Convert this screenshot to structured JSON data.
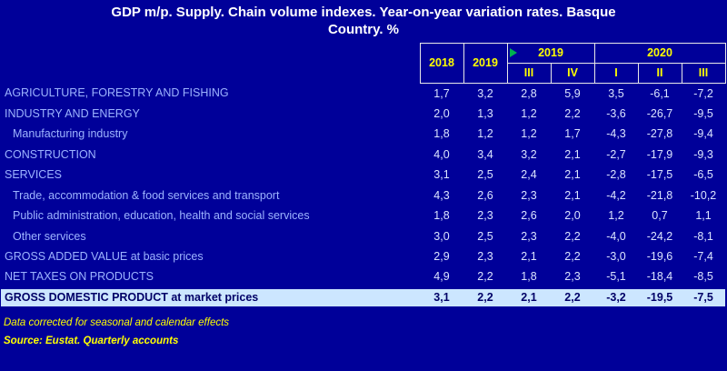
{
  "title": {
    "line1": "GDP m/p. Supply. Chain volume indexes. Year-on-year variation rates. Basque",
    "line2": "Country. %"
  },
  "chart_data": {
    "type": "table",
    "title": "GDP m/p. Supply. Chain volume indexes. Year-on-year variation rates. Basque Country. %",
    "unit": "% year-on-year variation",
    "header": {
      "annual_cols": [
        "2018",
        "2019"
      ],
      "groups": [
        {
          "label": "2019",
          "quarters": [
            "III",
            "IV"
          ]
        },
        {
          "label": "2020",
          "quarters": [
            "I",
            "II",
            "III"
          ]
        }
      ],
      "sub_headers": [
        "III",
        "IV",
        "I",
        "II",
        "III"
      ]
    },
    "rows": [
      {
        "label": "AGRICULTURE, FORESTRY AND FISHING",
        "indent": false,
        "values": [
          "1,7",
          "3,2",
          "2,8",
          "5,9",
          "3,5",
          "-6,1",
          "-7,2"
        ]
      },
      {
        "label": "INDUSTRY AND ENERGY",
        "indent": false,
        "values": [
          "2,0",
          "1,3",
          "1,2",
          "2,2",
          "-3,6",
          "-26,7",
          "-9,5"
        ]
      },
      {
        "label": "Manufacturing industry",
        "indent": true,
        "values": [
          "1,8",
          "1,2",
          "1,2",
          "1,7",
          "-4,3",
          "-27,8",
          "-9,4"
        ]
      },
      {
        "label": "CONSTRUCTION",
        "indent": false,
        "values": [
          "4,0",
          "3,4",
          "3,2",
          "2,1",
          "-2,7",
          "-17,9",
          "-9,3"
        ]
      },
      {
        "label": "SERVICES",
        "indent": false,
        "values": [
          "3,1",
          "2,5",
          "2,4",
          "2,1",
          "-2,8",
          "-17,5",
          "-6,5"
        ]
      },
      {
        "label": "Trade, accommodation & food services and transport",
        "indent": true,
        "values": [
          "4,3",
          "2,6",
          "2,3",
          "2,1",
          "-4,2",
          "-21,8",
          "-10,2"
        ]
      },
      {
        "label": "Public administration, education, health and social services",
        "indent": true,
        "values": [
          "1,8",
          "2,3",
          "2,6",
          "2,0",
          "1,2",
          "0,7",
          "1,1"
        ]
      },
      {
        "label": "Other services",
        "indent": true,
        "values": [
          "3,0",
          "2,5",
          "2,3",
          "2,2",
          "-4,0",
          "-24,2",
          "-8,1"
        ]
      },
      {
        "label": "GROSS ADDED VALUE at basic prices",
        "indent": false,
        "values": [
          "2,9",
          "2,3",
          "2,1",
          "2,2",
          "-3,0",
          "-19,6",
          "-7,4"
        ]
      },
      {
        "label": "NET TAXES ON PRODUCTS",
        "indent": false,
        "values": [
          "4,9",
          "2,2",
          "1,8",
          "2,3",
          "-5,1",
          "-18,4",
          "-8,5"
        ]
      }
    ],
    "total_row": {
      "label": "GROSS DOMESTIC PRODUCT at market prices",
      "values": [
        "3,1",
        "2,2",
        "2,1",
        "2,2",
        "-3,2",
        "-19,5",
        "-7,5"
      ]
    }
  },
  "footer": {
    "note": "Data corrected for seasonal and calendar effects",
    "source": "Source: Eustat. Quarterly accounts"
  },
  "icons": {
    "marker": "green-triangle"
  },
  "colors": {
    "bg": "#000099",
    "title_text": "#ffffff",
    "header_text": "#ffff00",
    "label_text": "#9db4ff",
    "value_text": "#dbe4ff",
    "total_bg": "#cce6ff",
    "total_text": "#000066",
    "note_text": "#ffff00",
    "marker_green": "#00b050",
    "border": "#e8e8e8"
  }
}
